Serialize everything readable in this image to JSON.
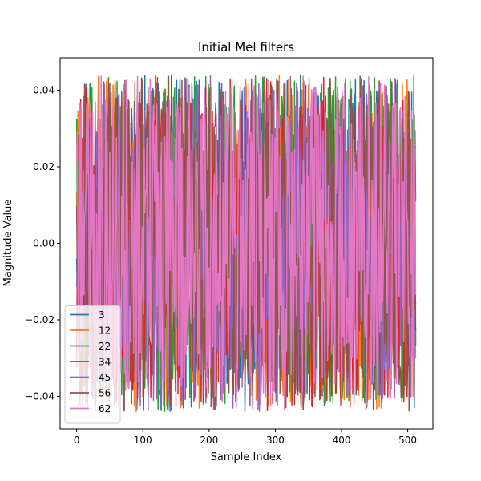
{
  "chart_data": {
    "type": "line",
    "title": "Initial Mel filters",
    "xlabel": "Sample Index",
    "ylabel": "Magnitude Value",
    "xlim": [
      -25,
      538
    ],
    "ylim": [
      -0.0485,
      0.0485
    ],
    "xticks": [
      0,
      100,
      200,
      300,
      400,
      500
    ],
    "xtick_labels": [
      "0",
      "100",
      "200",
      "300",
      "400",
      "500"
    ],
    "yticks": [
      -0.04,
      -0.02,
      0.0,
      0.02,
      0.04
    ],
    "ytick_labels": [
      "−0.04",
      "−0.02",
      "0.00",
      "0.02",
      "0.04"
    ],
    "grid": false,
    "legend_position": "lower-left",
    "num_samples": 513,
    "value_range": [
      -0.044,
      0.044
    ],
    "series": [
      {
        "name": "3",
        "color": "#1f77b4",
        "seed": 3
      },
      {
        "name": "12",
        "color": "#ff7f0e",
        "seed": 12
      },
      {
        "name": "22",
        "color": "#2ca02c",
        "seed": 22
      },
      {
        "name": "34",
        "color": "#d62728",
        "seed": 34
      },
      {
        "name": "45",
        "color": "#9467bd",
        "seed": 45
      },
      {
        "name": "56",
        "color": "#8c564b",
        "seed": 56
      },
      {
        "name": "62",
        "color": "#e377c2",
        "seed": 62
      }
    ]
  }
}
